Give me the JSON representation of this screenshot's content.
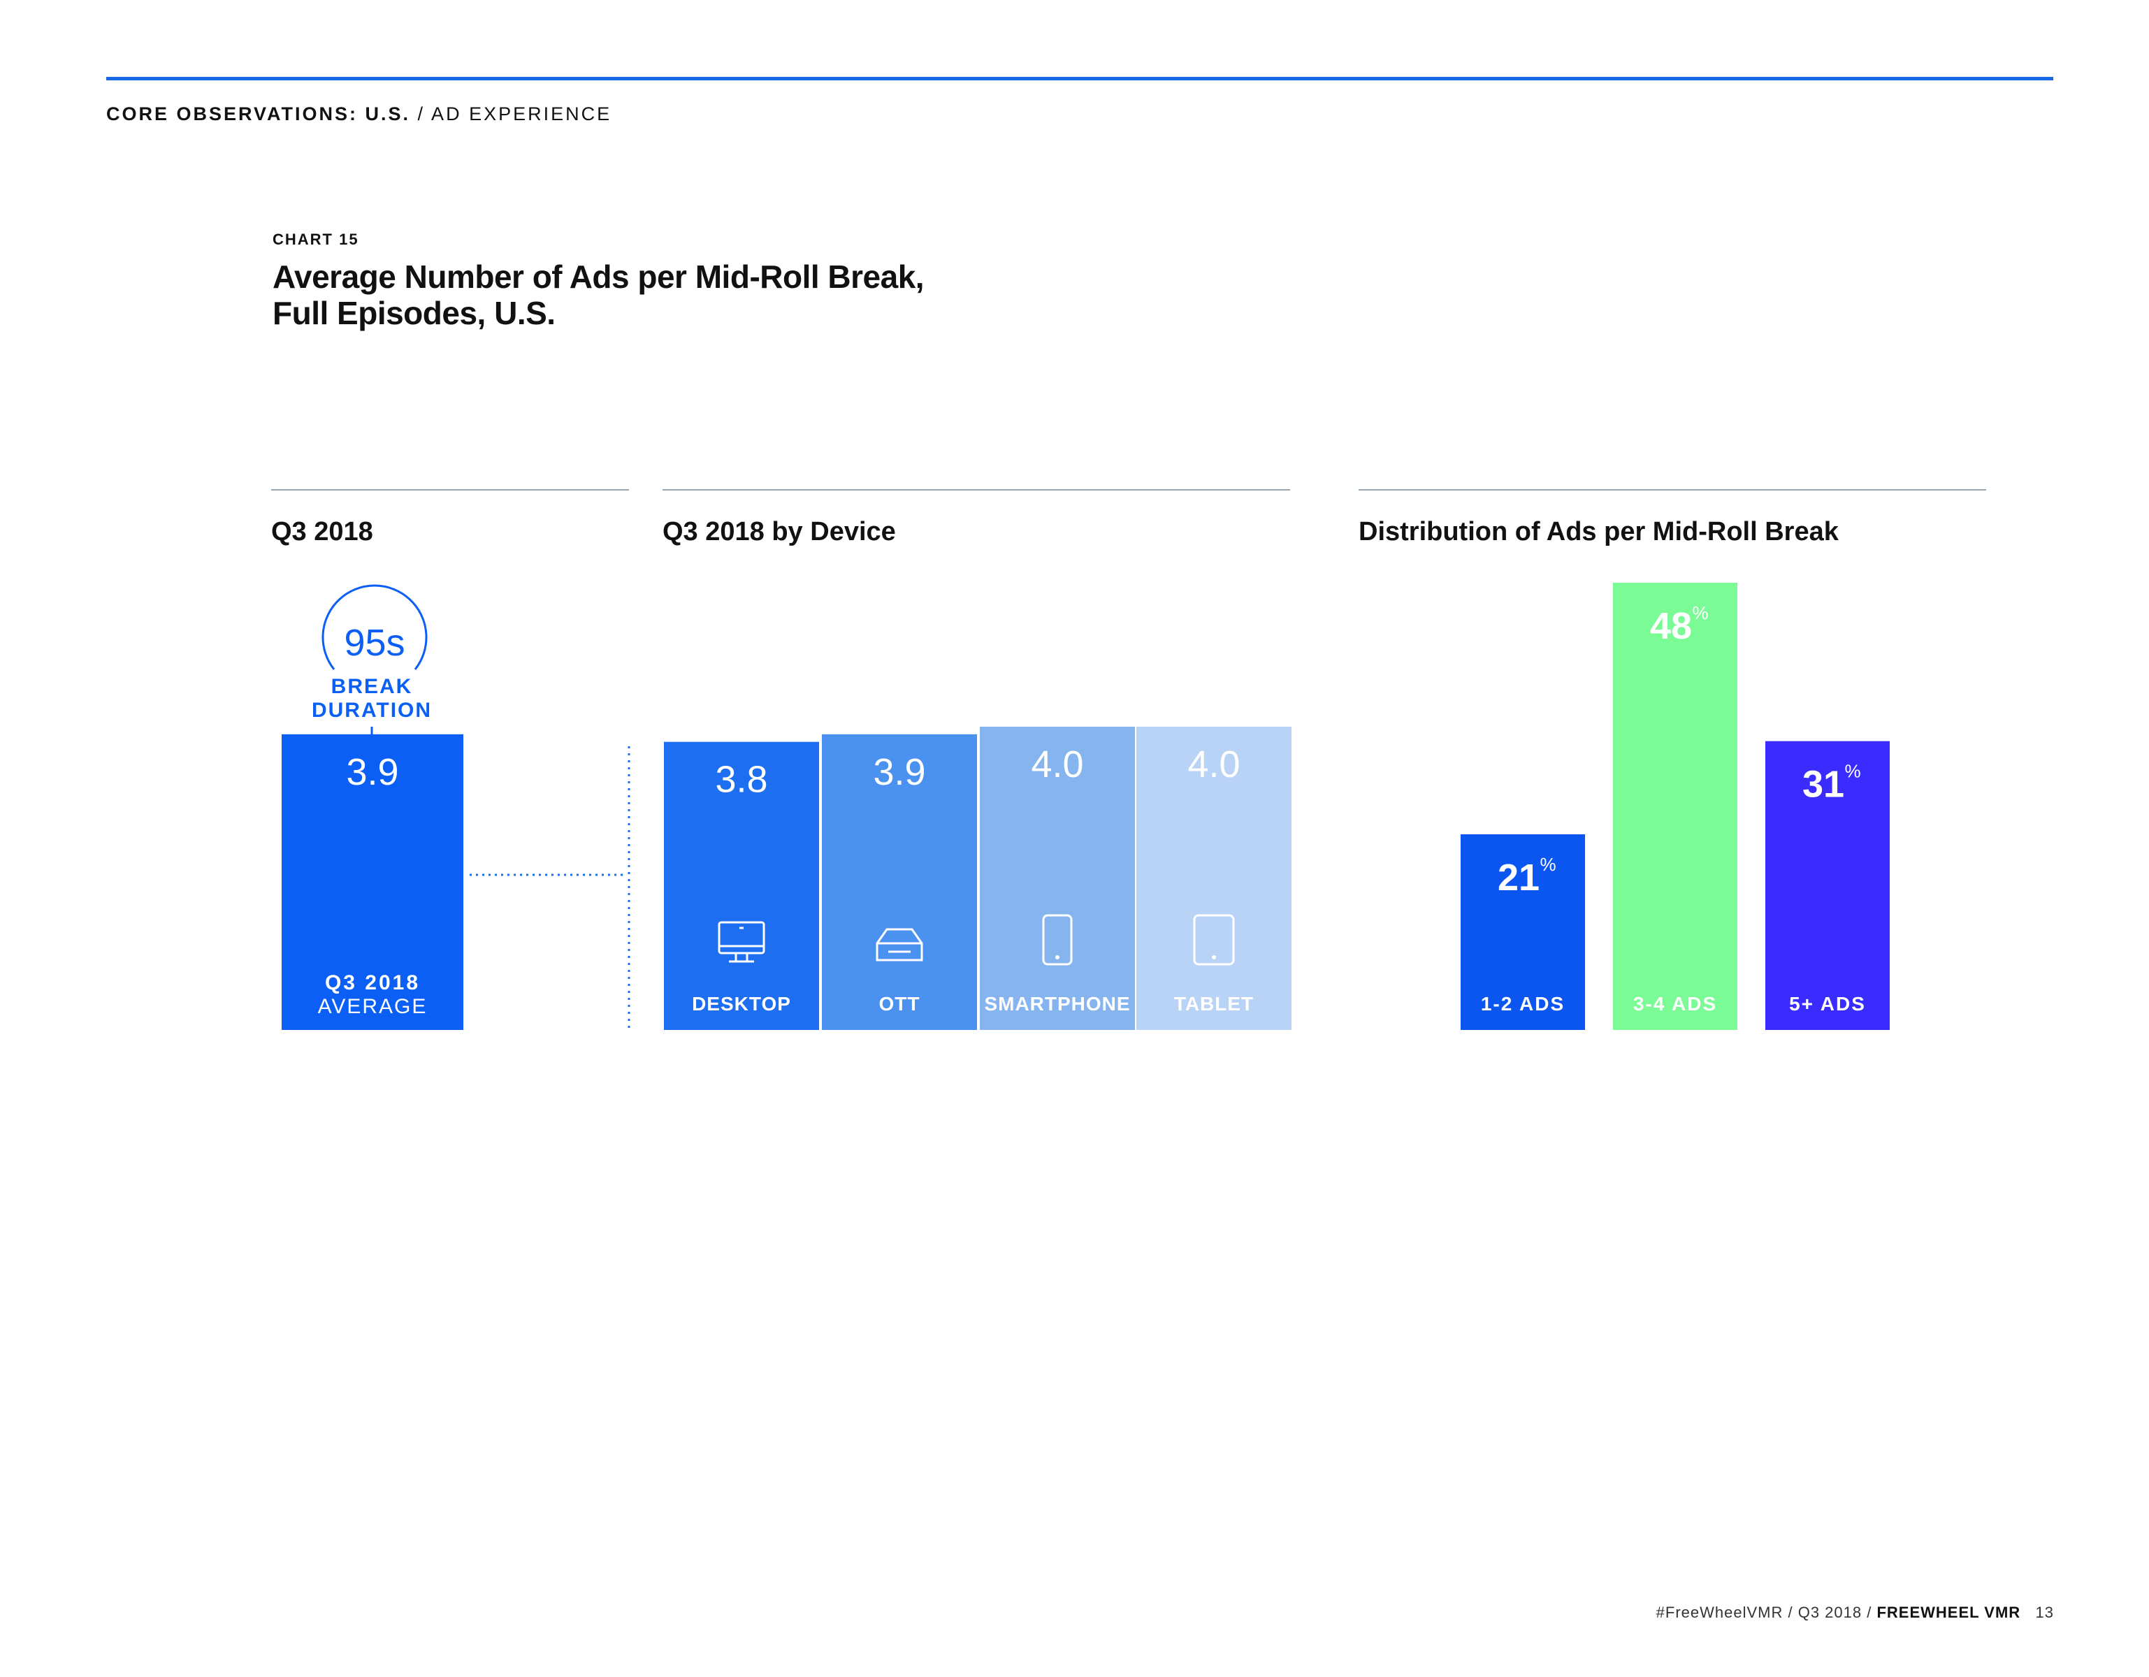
{
  "header": {
    "breadcrumb_bold": "CORE OBSERVATIONS: U.S.",
    "breadcrumb_rest": " / AD EXPERIENCE"
  },
  "chart": {
    "kicker": "CHART 15",
    "title_line1": "Average Number of Ads per Mid-Roll Break,",
    "title_line2": "Full Episodes, U.S."
  },
  "sections": {
    "average_title": "Q3 2018",
    "device_title": "Q3 2018 by Device",
    "distribution_title": "Distribution of Ads per Mid-Roll Break"
  },
  "duration_badge": {
    "value": "95s",
    "label_line1": "BREAK",
    "label_line2": "DURATION"
  },
  "colors": {
    "average": "#0b5ff5",
    "desktop": "#1d6ef0",
    "ott": "#4b92f0",
    "smartphone": "#86b4ef",
    "tablet": "#b8d3f6",
    "dist_1_2": "#0b55f0",
    "dist_3_4": "#7bfb95",
    "dist_5plus": "#3a2cff",
    "rule": "#1768e6"
  },
  "chart_data": [
    {
      "type": "bar",
      "title": "Q3 2018",
      "categories": [
        "Q3 2018 AVERAGE"
      ],
      "category_lines": [
        [
          "Q3 2018",
          "AVERAGE"
        ]
      ],
      "values": [
        3.9
      ],
      "value_labels": [
        "3.9"
      ],
      "annotation": "95s BREAK DURATION"
    },
    {
      "type": "bar",
      "title": "Q3 2018 by Device",
      "categories": [
        "DESKTOP",
        "OTT",
        "SMARTPHONE",
        "TABLET"
      ],
      "icons": [
        "desktop-icon",
        "ott-box-icon",
        "smartphone-icon",
        "tablet-icon"
      ],
      "values": [
        3.8,
        3.9,
        4.0,
        4.0
      ],
      "value_labels": [
        "3.8",
        "3.9",
        "4.0",
        "4.0"
      ]
    },
    {
      "type": "bar",
      "title": "Distribution of Ads per Mid-Roll Break",
      "categories": [
        "1-2 ADS",
        "3-4 ADS",
        "5+ ADS"
      ],
      "values": [
        21,
        48,
        31
      ],
      "value_labels": [
        "21",
        "48",
        "31"
      ],
      "unit": "%"
    }
  ],
  "footer": {
    "hashtag": "#FreeWheelVMR",
    "period": "Q3 2018",
    "brand": "FREEWHEEL VMR",
    "page": "13"
  }
}
